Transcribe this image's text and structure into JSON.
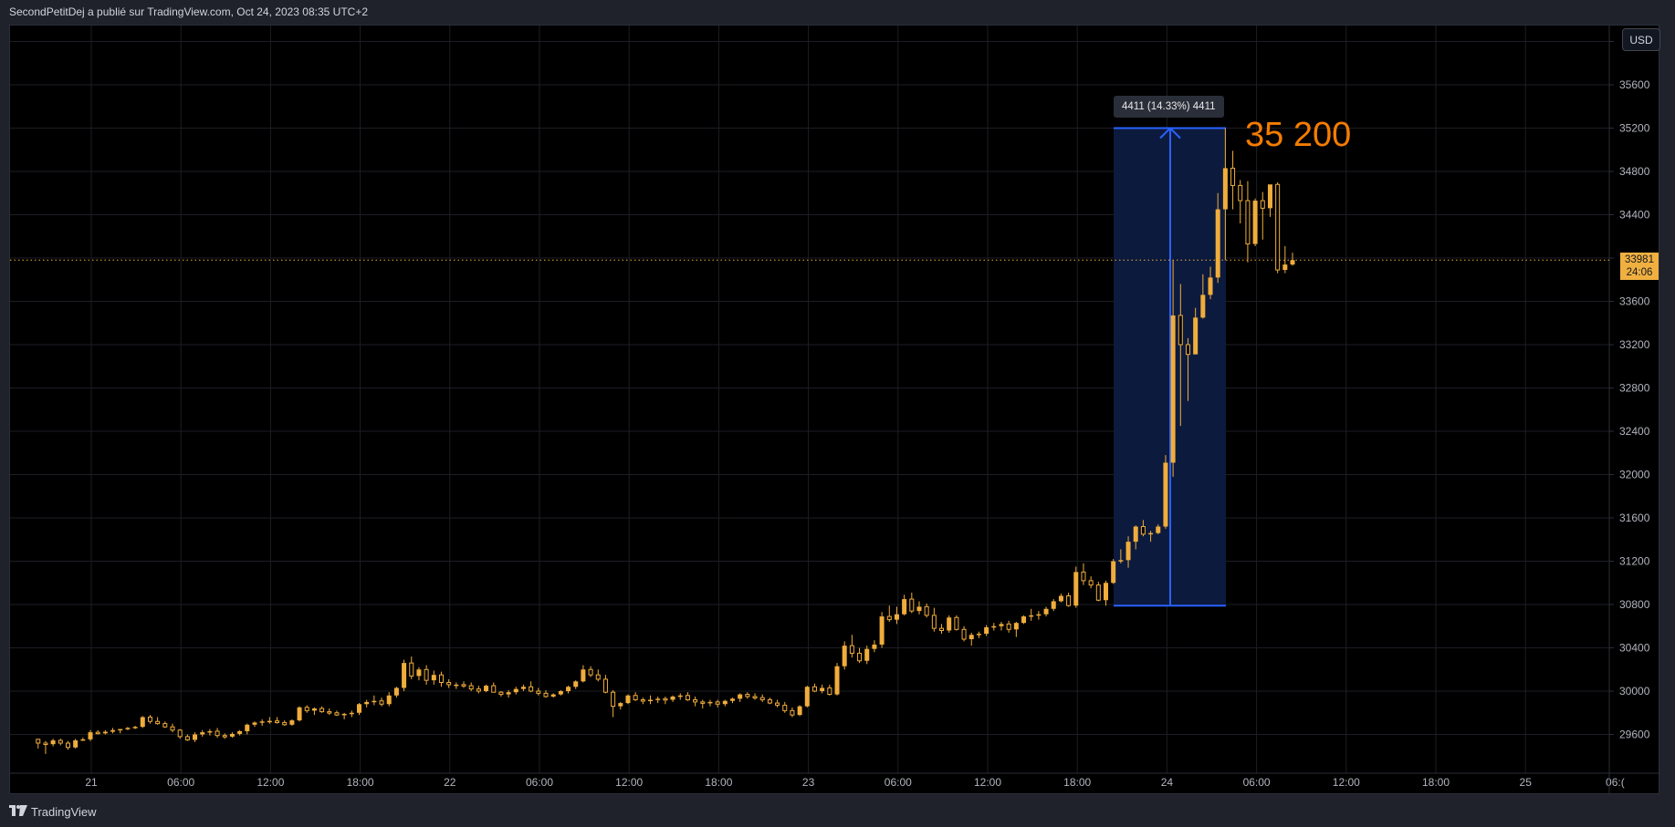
{
  "header": {
    "attribution": "SecondPetitDej a publié sur TradingView.com, Oct 24, 2023 08:35 UTC+2"
  },
  "footer": {
    "brand": "TradingView",
    "logo_icon": "tradingview-logo-icon"
  },
  "toolbar": {
    "currency_button": "USD"
  },
  "price_tag": {
    "price": "33981",
    "countdown": "24:06"
  },
  "measure": {
    "label": "4411 (14.33%) 4411",
    "from_price": 30789,
    "to_price": 35200,
    "box_color": "#0c1a3d",
    "line_color": "#2962ff"
  },
  "annotation": {
    "text": "35 200",
    "color": "#f57c00"
  },
  "colors": {
    "background": "#000000",
    "frame": "#1f222b",
    "grid": "#1c1e24",
    "candle": "#f0ad3c",
    "axis_text": "#b2b5be"
  },
  "chart_data": {
    "type": "candlestick",
    "title": "",
    "xlabel": "",
    "ylabel": "USD",
    "interval": "30m",
    "ylim": [
      29350,
      36100
    ],
    "grid": true,
    "y_ticks": [
      35600,
      35200,
      34800,
      34400,
      34000,
      33600,
      33200,
      32800,
      32400,
      32000,
      31600,
      31200,
      30800,
      30400,
      30000,
      29600
    ],
    "y_tick_labels": [
      "35600",
      "35200",
      "34800",
      "34400",
      "",
      "33600",
      "33200",
      "32800",
      "32400",
      "32000",
      "31600",
      "31200",
      "30800",
      "30400",
      "30000",
      "29600"
    ],
    "x_ticks": [
      "21",
      "06:00",
      "12:00",
      "18:00",
      "22",
      "06:00",
      "12:00",
      "18:00",
      "23",
      "06:00",
      "12:00",
      "18:00",
      "24",
      "06:00",
      "12:00",
      "18:00",
      "25",
      "06:("
    ],
    "last_price": 33981,
    "candle_style": "filled = up (close > open), hollow = down",
    "candles_ohlc": [
      [
        29555,
        29560,
        29470,
        29520
      ],
      [
        29520,
        29540,
        29420,
        29510
      ],
      [
        29510,
        29560,
        29490,
        29545
      ],
      [
        29545,
        29560,
        29500,
        29520
      ],
      [
        29520,
        29540,
        29460,
        29480
      ],
      [
        29480,
        29560,
        29470,
        29545
      ],
      [
        29545,
        29570,
        29540,
        29555
      ],
      [
        29555,
        29640,
        29540,
        29620
      ],
      [
        29620,
        29640,
        29600,
        29610
      ],
      [
        29610,
        29640,
        29600,
        29625
      ],
      [
        29625,
        29660,
        29610,
        29640
      ],
      [
        29640,
        29650,
        29610,
        29650
      ],
      [
        29650,
        29670,
        29640,
        29660
      ],
      [
        29660,
        29680,
        29650,
        29670
      ],
      [
        29670,
        29770,
        29660,
        29760
      ],
      [
        29760,
        29780,
        29700,
        29720
      ],
      [
        29720,
        29760,
        29690,
        29700
      ],
      [
        29700,
        29720,
        29660,
        29670
      ],
      [
        29670,
        29700,
        29620,
        29640
      ],
      [
        29640,
        29650,
        29560,
        29580
      ],
      [
        29580,
        29600,
        29540,
        29550
      ],
      [
        29550,
        29620,
        29530,
        29600
      ],
      [
        29600,
        29640,
        29580,
        29620
      ],
      [
        29620,
        29650,
        29590,
        29630
      ],
      [
        29630,
        29660,
        29570,
        29590
      ],
      [
        29590,
        29610,
        29560,
        29580
      ],
      [
        29580,
        29620,
        29570,
        29605
      ],
      [
        29605,
        29640,
        29590,
        29630
      ],
      [
        29630,
        29700,
        29600,
        29690
      ],
      [
        29690,
        29720,
        29670,
        29710
      ],
      [
        29710,
        29740,
        29680,
        29720
      ],
      [
        29720,
        29760,
        29700,
        29725
      ],
      [
        29725,
        29760,
        29700,
        29710
      ],
      [
        29710,
        29730,
        29680,
        29690
      ],
      [
        29690,
        29740,
        29680,
        29730
      ],
      [
        29730,
        29860,
        29720,
        29850
      ],
      [
        29850,
        29870,
        29800,
        29820
      ],
      [
        29820,
        29850,
        29780,
        29840
      ],
      [
        29840,
        29860,
        29800,
        29810
      ],
      [
        29810,
        29840,
        29780,
        29800
      ],
      [
        29800,
        29820,
        29770,
        29780
      ],
      [
        29780,
        29800,
        29740,
        29790
      ],
      [
        29790,
        29820,
        29760,
        29800
      ],
      [
        29800,
        29890,
        29780,
        29880
      ],
      [
        29880,
        29920,
        29850,
        29900
      ],
      [
        29900,
        29960,
        29870,
        29910
      ],
      [
        29910,
        29940,
        29860,
        29880
      ],
      [
        29880,
        29990,
        29860,
        29960
      ],
      [
        29960,
        30040,
        29940,
        30030
      ],
      [
        30030,
        30290,
        30000,
        30260
      ],
      [
        30260,
        30320,
        30110,
        30140
      ],
      [
        30140,
        30220,
        30100,
        30200
      ],
      [
        30200,
        30240,
        30060,
        30100
      ],
      [
        30100,
        30190,
        30060,
        30150
      ],
      [
        30150,
        30180,
        30040,
        30080
      ],
      [
        30080,
        30110,
        30030,
        30060
      ],
      [
        30060,
        30080,
        30020,
        30060
      ],
      [
        30060,
        30090,
        30030,
        30050
      ],
      [
        30050,
        30080,
        30000,
        30020
      ],
      [
        30020,
        30050,
        29980,
        30000
      ],
      [
        30000,
        30060,
        29990,
        30050
      ],
      [
        30050,
        30080,
        29990,
        29990
      ],
      [
        29990,
        30000,
        29950,
        29970
      ],
      [
        29970,
        30010,
        29940,
        29990
      ],
      [
        29990,
        30040,
        29970,
        30020
      ],
      [
        30020,
        30060,
        30000,
        30040
      ],
      [
        30040,
        30090,
        29990,
        30000
      ],
      [
        30000,
        30030,
        29960,
        29980
      ],
      [
        29980,
        30010,
        29940,
        29950
      ],
      [
        29950,
        29980,
        29940,
        29970
      ],
      [
        29970,
        30010,
        29960,
        30000
      ],
      [
        30000,
        30050,
        29980,
        30040
      ],
      [
        30040,
        30100,
        30020,
        30090
      ],
      [
        30090,
        30240,
        30080,
        30200
      ],
      [
        30200,
        30230,
        30130,
        30150
      ],
      [
        30150,
        30200,
        30090,
        30110
      ],
      [
        30110,
        30150,
        29980,
        29990
      ],
      [
        29990,
        30010,
        29760,
        29860
      ],
      [
        29860,
        29900,
        29830,
        29890
      ],
      [
        29890,
        29970,
        29880,
        29960
      ],
      [
        29960,
        29990,
        29910,
        29920
      ],
      [
        29920,
        29940,
        29880,
        29910
      ],
      [
        29910,
        29960,
        29880,
        29920
      ],
      [
        29920,
        29950,
        29890,
        29930
      ],
      [
        29930,
        29950,
        29880,
        29920
      ],
      [
        29920,
        29960,
        29900,
        29950
      ],
      [
        29950,
        29980,
        29920,
        29960
      ],
      [
        29960,
        29990,
        29910,
        29920
      ],
      [
        29920,
        29950,
        29860,
        29900
      ],
      [
        29900,
        29920,
        29840,
        29890
      ],
      [
        29890,
        29920,
        29860,
        29900
      ],
      [
        29900,
        29920,
        29850,
        29880
      ],
      [
        29880,
        29920,
        29860,
        29910
      ],
      [
        29910,
        29940,
        29890,
        29930
      ],
      [
        29930,
        29980,
        29900,
        29970
      ],
      [
        29970,
        29990,
        29930,
        29950
      ],
      [
        29950,
        29980,
        29920,
        29940
      ],
      [
        29940,
        29970,
        29900,
        29920
      ],
      [
        29920,
        29940,
        29880,
        29890
      ],
      [
        29890,
        29920,
        29850,
        29870
      ],
      [
        29870,
        29900,
        29800,
        29820
      ],
      [
        29820,
        29850,
        29760,
        29780
      ],
      [
        29780,
        29870,
        29770,
        29860
      ],
      [
        29860,
        30050,
        29850,
        30040
      ],
      [
        30040,
        30070,
        29990,
        30000
      ],
      [
        30000,
        30060,
        29980,
        30030
      ],
      [
        30030,
        30060,
        29960,
        29970
      ],
      [
        29970,
        30260,
        29960,
        30230
      ],
      [
        30230,
        30460,
        30200,
        30420
      ],
      [
        30420,
        30520,
        30310,
        30350
      ],
      [
        30350,
        30400,
        30260,
        30280
      ],
      [
        30280,
        30420,
        30250,
        30390
      ],
      [
        30390,
        30470,
        30360,
        30430
      ],
      [
        30430,
        30730,
        30400,
        30690
      ],
      [
        30690,
        30790,
        30640,
        30660
      ],
      [
        30660,
        30780,
        30620,
        30710
      ],
      [
        30710,
        30890,
        30700,
        30850
      ],
      [
        30850,
        30910,
        30720,
        30740
      ],
      [
        30740,
        30830,
        30710,
        30780
      ],
      [
        30780,
        30810,
        30680,
        30700
      ],
      [
        30700,
        30770,
        30550,
        30580
      ],
      [
        30580,
        30620,
        30530,
        30560
      ],
      [
        30560,
        30700,
        30540,
        30680
      ],
      [
        30680,
        30700,
        30560,
        30570
      ],
      [
        30570,
        30600,
        30460,
        30480
      ],
      [
        30480,
        30540,
        30420,
        30520
      ],
      [
        30520,
        30550,
        30490,
        30530
      ],
      [
        30530,
        30610,
        30510,
        30590
      ],
      [
        30590,
        30630,
        30560,
        30600
      ],
      [
        30600,
        30640,
        30560,
        30620
      ],
      [
        30620,
        30650,
        30540,
        30570
      ],
      [
        30570,
        30640,
        30500,
        30630
      ],
      [
        30630,
        30700,
        30620,
        30690
      ],
      [
        30690,
        30760,
        30650,
        30700
      ],
      [
        30700,
        30740,
        30660,
        30710
      ],
      [
        30710,
        30780,
        30690,
        30760
      ],
      [
        30760,
        30850,
        30740,
        30830
      ],
      [
        30830,
        30900,
        30820,
        30880
      ],
      [
        30880,
        30910,
        30780,
        30790
      ],
      [
        30790,
        31150,
        30770,
        31100
      ],
      [
        31100,
        31180,
        30980,
        31020
      ],
      [
        31020,
        31060,
        30950,
        30980
      ],
      [
        30980,
        31010,
        30830,
        30840
      ],
      [
        30840,
        31020,
        30790,
        31000
      ],
      [
        31000,
        31220,
        30990,
        31200
      ],
      [
        31200,
        31310,
        31180,
        31210
      ],
      [
        31210,
        31430,
        31140,
        31380
      ],
      [
        31380,
        31530,
        31310,
        31520
      ],
      [
        31520,
        31580,
        31430,
        31450
      ],
      [
        31450,
        31480,
        31380,
        31460
      ],
      [
        31460,
        31540,
        31450,
        31520
      ],
      [
        31520,
        32180,
        31500,
        32110
      ],
      [
        32110,
        33980,
        31980,
        33470
      ],
      [
        33470,
        33760,
        32450,
        33200
      ],
      [
        33200,
        33260,
        32680,
        33110
      ],
      [
        33110,
        33540,
        33340,
        33450
      ],
      [
        33450,
        33850,
        33440,
        33660
      ],
      [
        33660,
        33920,
        33620,
        33820
      ],
      [
        33820,
        34600,
        33770,
        34450
      ],
      [
        34450,
        35200,
        33980,
        34830
      ],
      [
        34830,
        34990,
        34450,
        34670
      ],
      [
        34670,
        34720,
        34320,
        34530
      ],
      [
        34530,
        34710,
        33960,
        34130
      ],
      [
        34130,
        34550,
        34110,
        34530
      ],
      [
        34530,
        34610,
        34170,
        34460
      ],
      [
        34460,
        34480,
        34380,
        34680
      ],
      [
        34680,
        34700,
        33860,
        33890
      ],
      [
        33890,
        34110,
        33860,
        33940
      ],
      [
        33940,
        34050,
        33930,
        33981
      ]
    ]
  }
}
